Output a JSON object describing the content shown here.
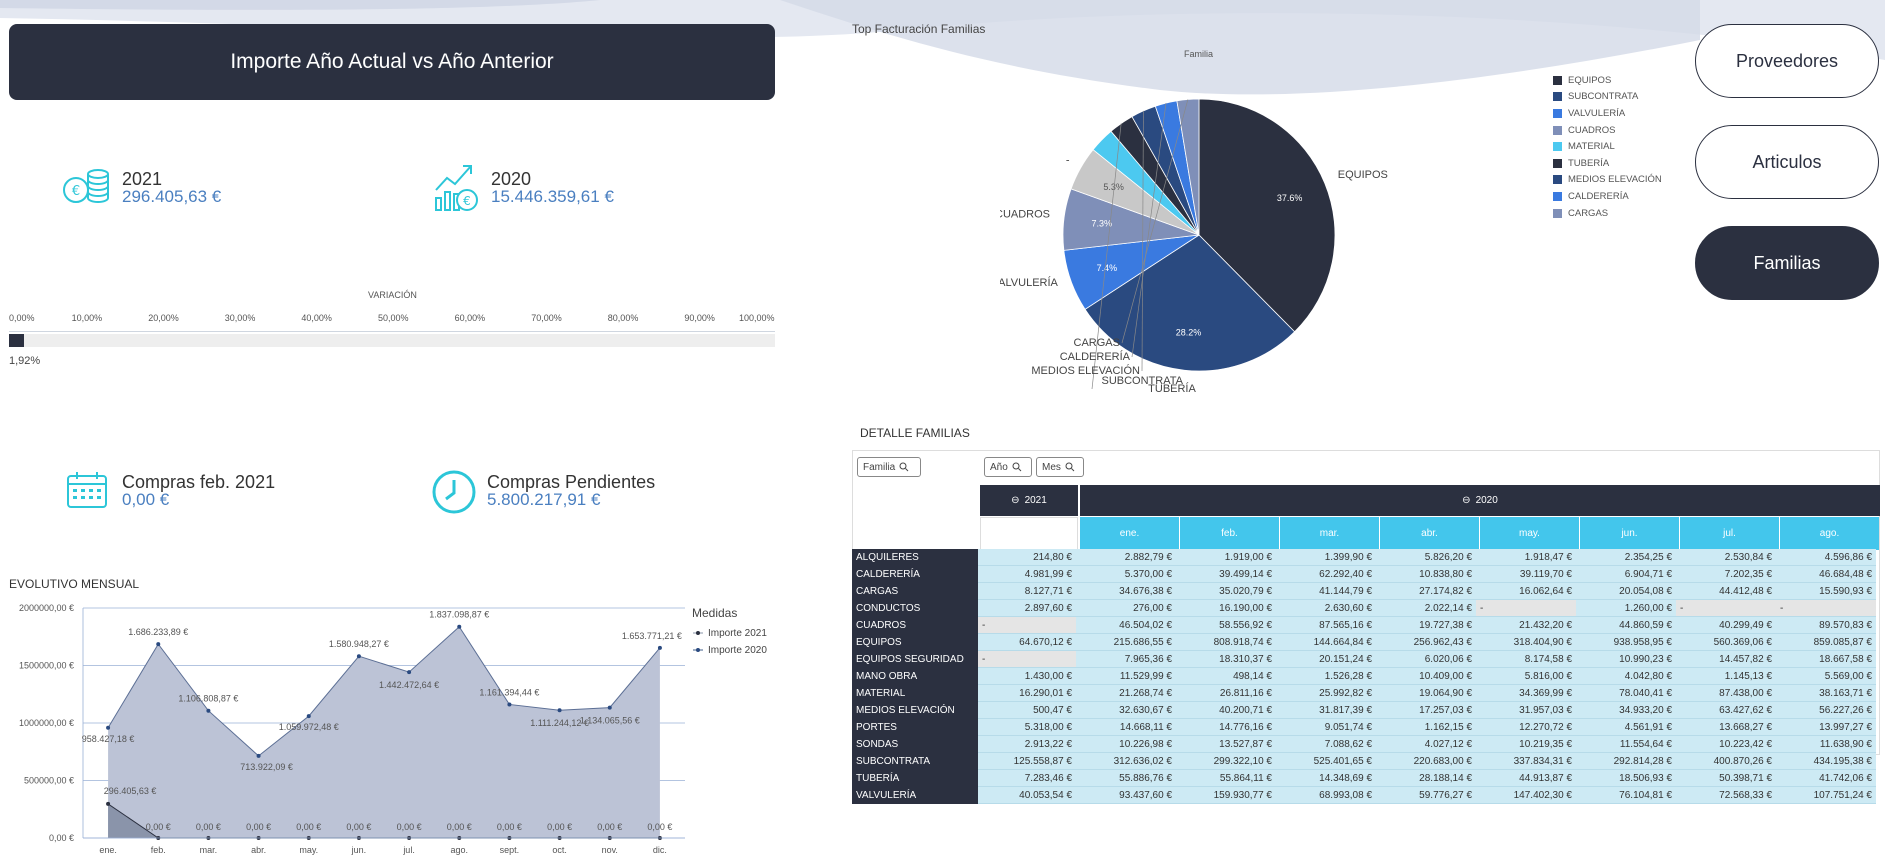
{
  "header": {
    "title": "Importe Año Actual vs Año Anterior"
  },
  "kpis": {
    "current": {
      "year": "2021",
      "value": "296.405,63 €"
    },
    "previous": {
      "year": "2020",
      "value": "15.446.359,61 €"
    },
    "purchases": {
      "label": "Compras feb. 2021",
      "value": "0,00 €"
    },
    "pending": {
      "label": "Compras Pendientes",
      "value": "5.800.217,91 €"
    }
  },
  "variation": {
    "title": "VARIACIÓN",
    "ticks": [
      "0,00%",
      "10,00%",
      "20,00%",
      "30,00%",
      "40,00%",
      "50,00%",
      "60,00%",
      "70,00%",
      "80,00%",
      "90,00%",
      "100,00%"
    ],
    "value_label": "1,92%",
    "value": 1.92
  },
  "nav": {
    "proveedores": "Proveedores",
    "articulos": "Articulos",
    "familias": "Familias"
  },
  "pie": {
    "title": "Top Facturación Familias",
    "legend_title": "Familia",
    "legend": [
      {
        "label": "EQUIPOS",
        "color": "#2b3040"
      },
      {
        "label": "SUBCONTRATA",
        "color": "#2a4a80"
      },
      {
        "label": "VALVULERÍA",
        "color": "#3a7ae0"
      },
      {
        "label": "CUADROS",
        "color": "#7f8fb8"
      },
      {
        "label": "MATERIAL",
        "color": "#4cc9f0"
      },
      {
        "label": "TUBERÍA",
        "color": "#2b3040"
      },
      {
        "label": "MEDIOS ELEVACIÓN",
        "color": "#2a4a80"
      },
      {
        "label": "CALDERERÍA",
        "color": "#3a7ae0"
      },
      {
        "label": "CARGAS",
        "color": "#7f8fb8"
      }
    ]
  },
  "detail": {
    "title": "DETALLE FAMILIAS",
    "filter_familia": "Familia",
    "filter_anio": "Año",
    "filter_mes": "Mes",
    "year_2021": "2021",
    "year_2020": "2020",
    "months": [
      "ene.",
      "feb.",
      "mar.",
      "abr.",
      "may.",
      "jun.",
      "jul.",
      "ago."
    ],
    "rows": [
      {
        "name": "ALQUILERES",
        "y2021": "214,80 €",
        "m": [
          "2.882,79 €",
          "1.919,00 €",
          "1.399,90 €",
          "5.826,20 €",
          "1.918,47 €",
          "2.354,25 €",
          "2.530,84 €",
          "4.596,86 €"
        ]
      },
      {
        "name": "CALDERERÍA",
        "y2021": "4.981,99 €",
        "m": [
          "5.370,00 €",
          "39.499,14 €",
          "62.292,40 €",
          "10.838,80 €",
          "39.119,70 €",
          "6.904,71 €",
          "7.202,35 €",
          "46.684,48 €"
        ]
      },
      {
        "name": "CARGAS",
        "y2021": "8.127,71 €",
        "m": [
          "34.676,38 €",
          "35.020,79 €",
          "41.144,79 €",
          "27.174,82 €",
          "16.062,64 €",
          "20.054,08 €",
          "44.412,48 €",
          "15.590,93 €"
        ]
      },
      {
        "name": "CONDUCTOS",
        "y2021": "2.897,60 €",
        "m": [
          "276,00 €",
          "16.190,00 €",
          "2.630,60 €",
          "2.022,14 €",
          "-",
          "1.260,00 €",
          "-",
          "-"
        ]
      },
      {
        "name": "CUADROS",
        "y2021": "-",
        "m": [
          "46.504,02 €",
          "58.556,92 €",
          "87.565,16 €",
          "19.727,38 €",
          "21.432,20 €",
          "44.860,59 €",
          "40.299,49 €",
          "89.570,83 €"
        ]
      },
      {
        "name": "EQUIPOS",
        "y2021": "64.670,12 €",
        "m": [
          "215.686,55 €",
          "808.918,74 €",
          "144.664,84 €",
          "256.962,43 €",
          "318.404,90 €",
          "938.958,95 €",
          "560.369,06 €",
          "859.085,87 €"
        ]
      },
      {
        "name": "EQUIPOS SEGURIDAD",
        "y2021": "-",
        "m": [
          "7.965,36 €",
          "18.310,37 €",
          "20.151,24 €",
          "6.020,06 €",
          "8.174,58 €",
          "10.990,23 €",
          "14.457,82 €",
          "18.667,58 €"
        ]
      },
      {
        "name": "MANO OBRA",
        "y2021": "1.430,00 €",
        "m": [
          "11.529,99 €",
          "498,14 €",
          "1.526,28 €",
          "10.409,00 €",
          "5.816,00 €",
          "4.042,80 €",
          "1.145,13 €",
          "5.569,00 €"
        ]
      },
      {
        "name": "MATERIAL",
        "y2021": "16.290,01 €",
        "m": [
          "21.268,74 €",
          "26.811,16 €",
          "25.992,82 €",
          "19.064,90 €",
          "34.369,99 €",
          "78.040,41 €",
          "87.438,00 €",
          "38.163,71 €"
        ]
      },
      {
        "name": "MEDIOS ELEVACIÓN",
        "y2021": "500,47 €",
        "m": [
          "32.630,67 €",
          "40.200,71 €",
          "31.817,39 €",
          "17.257,03 €",
          "31.957,03 €",
          "34.933,20 €",
          "63.427,62 €",
          "56.227,26 €"
        ]
      },
      {
        "name": "PORTES",
        "y2021": "5.318,00 €",
        "m": [
          "14.668,11 €",
          "14.776,16 €",
          "9.051,74 €",
          "1.162,15 €",
          "12.270,72 €",
          "4.561,91 €",
          "13.668,27 €",
          "13.997,27 €"
        ]
      },
      {
        "name": "SONDAS",
        "y2021": "2.913,22 €",
        "m": [
          "10.226,98 €",
          "13.527,87 €",
          "7.088,62 €",
          "4.027,12 €",
          "10.219,35 €",
          "11.554,64 €",
          "10.223,42 €",
          "11.638,90 €"
        ]
      },
      {
        "name": "SUBCONTRATA",
        "y2021": "125.558,87 €",
        "m": [
          "312.636,02 €",
          "299.322,10 €",
          "525.401,65 €",
          "220.683,00 €",
          "337.834,31 €",
          "292.814,28 €",
          "400.870,26 €",
          "434.195,38 €"
        ]
      },
      {
        "name": "TUBERÍA",
        "y2021": "7.283,46 €",
        "m": [
          "55.886,76 €",
          "55.864,11 €",
          "14.348,69 €",
          "28.188,14 €",
          "44.913,87 €",
          "18.506,93 €",
          "50.398,71 €",
          "41.742,06 €"
        ]
      },
      {
        "name": "VALVULERÍA",
        "y2021": "40.053,54 €",
        "m": [
          "93.437,60 €",
          "159.930,77 €",
          "68.993,08 €",
          "59.776,27 €",
          "147.402,30 €",
          "76.104,81 €",
          "72.568,33 €",
          "107.751,24 €"
        ]
      }
    ]
  },
  "chart_data": [
    {
      "type": "pie",
      "title": "Top Facturación Familias",
      "legend_title": "Familia",
      "categories": [
        "EQUIPOS",
        "SUBCONTRATA",
        "VALVULERÍA",
        "CUADROS",
        "-",
        "MATERIAL",
        "TUBERÍA",
        "MEDIOS ELEVACIÓN",
        "CALDERERÍA",
        "CARGAS"
      ],
      "values": [
        37.6,
        28.2,
        7.4,
        7.3,
        5.3,
        3.0,
        3.0,
        3.0,
        2.6,
        2.6
      ],
      "value_labels": [
        "37.6%",
        "28.2%",
        "7.4%",
        "7.3%",
        "5.3%",
        "",
        "",
        "",
        "",
        ""
      ],
      "colors": [
        "#2b3040",
        "#2a4a80",
        "#3a7ae0",
        "#7f8fb8",
        "#c8c8c8",
        "#4cc9f0",
        "#2b3040",
        "#2a4a80",
        "#3a7ae0",
        "#7f8fb8"
      ]
    },
    {
      "type": "area",
      "title": "EVOLUTIVO MENSUAL",
      "legend_title": "Medidas",
      "categories": [
        "ene.",
        "feb.",
        "mar.",
        "abr.",
        "may.",
        "jun.",
        "jul.",
        "ago.",
        "sept.",
        "oct.",
        "nov.",
        "dic."
      ],
      "yticks": [
        "0,00 €",
        "500000,00 €",
        "1000000,00 €",
        "1500000,00 €",
        "2000000,00 €"
      ],
      "ylim": [
        0,
        2000000
      ],
      "series": [
        {
          "name": "Importe 2021",
          "color": "#8a94aa",
          "values": [
            296405.63,
            0,
            0,
            0,
            0,
            0,
            0,
            0,
            0,
            0,
            0,
            0
          ],
          "labels": [
            "296.405,63 €",
            "0,00 €",
            "0,00 €",
            "0,00 €",
            "0,00 €",
            "0,00 €",
            "0,00 €",
            "0,00 €",
            "0,00 €",
            "0,00 €",
            "0,00 €",
            "0,00 €"
          ]
        },
        {
          "name": "Importe 2020",
          "color": "#3f5d8a",
          "values": [
            958427.18,
            1686233.89,
            1106808.87,
            713922.09,
            1059972.48,
            1580948.27,
            1442472.64,
            1837098.87,
            1161394.44,
            1111244.12,
            1134065.56,
            1653771.21
          ],
          "labels": [
            "958.427,18 €",
            "1.686.233,89 €",
            "1.106.808,87 €",
            "713.922,09 €",
            "1.059.972,48 €",
            "1.580.948,27 €",
            "1.442.472,64 €",
            "1.837.098,87 €",
            "1.161.394,44 €",
            "1.111.244,12 €",
            "1.134.065,56 €",
            "1.653.771,21 €"
          ]
        }
      ]
    }
  ]
}
